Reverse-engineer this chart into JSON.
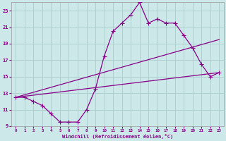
{
  "xlabel": "Windchill (Refroidissement éolien,°C)",
  "background_color": "#cce8e8",
  "line_color": "#880088",
  "grid_color": "#aacccc",
  "hours": [
    0,
    1,
    2,
    3,
    4,
    5,
    6,
    7,
    8,
    9,
    10,
    11,
    12,
    13,
    14,
    15,
    16,
    17,
    18,
    19,
    20,
    21,
    22,
    23
  ],
  "windchill": [
    12.5,
    12.5,
    12.0,
    11.5,
    10.5,
    9.5,
    9.5,
    9.5,
    11.0,
    13.5,
    17.5,
    20.5,
    21.5,
    22.5,
    24.0,
    21.5,
    22.0,
    21.5,
    21.5,
    20.0,
    18.5,
    16.5,
    15.0,
    15.5
  ],
  "trend1_x": [
    0,
    23
  ],
  "trend1_y": [
    12.5,
    19.5
  ],
  "trend2_x": [
    0,
    23
  ],
  "trend2_y": [
    12.5,
    15.5
  ],
  "ylim": [
    9,
    24
  ],
  "yticks": [
    9,
    11,
    13,
    15,
    17,
    19,
    21,
    23
  ],
  "xlim": [
    -0.5,
    23.5
  ]
}
